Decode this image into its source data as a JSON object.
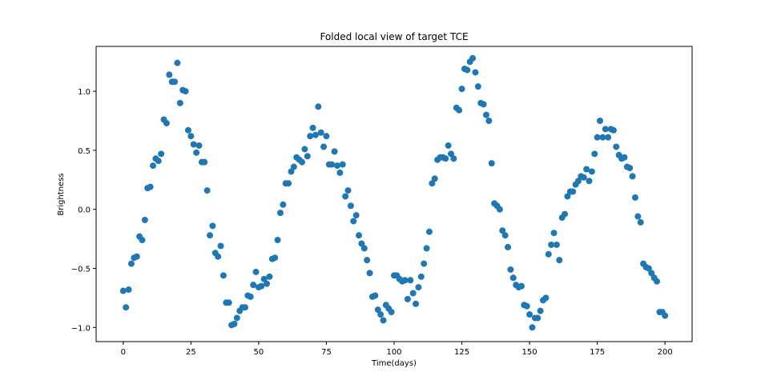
{
  "chart_data": {
    "type": "scatter",
    "title": "Folded local view of target TCE",
    "xlabel": "Time(days)",
    "ylabel": "Brightness",
    "xlim": [
      -10,
      210
    ],
    "ylim": [
      -1.12,
      1.38
    ],
    "xticks": [
      0,
      25,
      50,
      75,
      100,
      125,
      150,
      175,
      200
    ],
    "yticks": [
      -1.0,
      -0.5,
      0.0,
      0.5,
      1.0
    ],
    "ytick_labels": [
      "−1.0",
      "−0.5",
      "0.0",
      "0.5",
      "1.0"
    ],
    "grid": false,
    "marker_color": "#1f77b4",
    "x": [
      0,
      1,
      2,
      3,
      4,
      5,
      6,
      7,
      8,
      9,
      10,
      11,
      12,
      13,
      14,
      15,
      16,
      17,
      18,
      19,
      20,
      21,
      22,
      23,
      24,
      25,
      26,
      27,
      28,
      29,
      30,
      31,
      32,
      33,
      34,
      35,
      36,
      37,
      38,
      39,
      40,
      41,
      42,
      43,
      44,
      45,
      46,
      47,
      48,
      49,
      50,
      51,
      52,
      53,
      54,
      55,
      56,
      57,
      58,
      59,
      60,
      61,
      62,
      63,
      64,
      65,
      66,
      67,
      68,
      69,
      70,
      71,
      72,
      73,
      74,
      75,
      76,
      77,
      78,
      79,
      80,
      81,
      82,
      83,
      84,
      85,
      86,
      87,
      88,
      89,
      90,
      91,
      92,
      93,
      94,
      95,
      96,
      97,
      98,
      99,
      100,
      101,
      102,
      103,
      104,
      105,
      106,
      107,
      108,
      109,
      110,
      111,
      112,
      113,
      114,
      115,
      116,
      117,
      118,
      119,
      120,
      121,
      122,
      123,
      124,
      125,
      126,
      127,
      128,
      129,
      130,
      131,
      132,
      133,
      134,
      135,
      136,
      137,
      138,
      139,
      140,
      141,
      142,
      143,
      144,
      145,
      146,
      147,
      148,
      149,
      150,
      151,
      152,
      153,
      154,
      155,
      156,
      157,
      158,
      159,
      160,
      161,
      162,
      163,
      164,
      165,
      166,
      167,
      168,
      169,
      170,
      171,
      172,
      173,
      174,
      175,
      176,
      177,
      178,
      179,
      180,
      181,
      182,
      183,
      184,
      185,
      186,
      187,
      188,
      189,
      190,
      191,
      192,
      193,
      194,
      195,
      196,
      197,
      198,
      199,
      200
    ],
    "y": [
      -0.69,
      -0.83,
      -0.68,
      -0.46,
      -0.41,
      -0.4,
      -0.23,
      -0.26,
      -0.09,
      0.18,
      0.19,
      0.37,
      0.43,
      0.41,
      0.47,
      0.76,
      0.73,
      1.14,
      1.08,
      1.08,
      1.24,
      0.9,
      1.01,
      1.0,
      0.67,
      0.62,
      0.55,
      0.48,
      0.54,
      0.4,
      0.4,
      0.16,
      -0.22,
      -0.14,
      -0.37,
      -0.4,
      -0.31,
      -0.56,
      -0.79,
      -0.79,
      -0.98,
      -0.97,
      -0.92,
      -0.86,
      -0.83,
      -0.83,
      -0.73,
      -0.74,
      -0.64,
      -0.53,
      -0.66,
      -0.65,
      -0.59,
      -0.63,
      -0.57,
      -0.42,
      -0.41,
      -0.26,
      -0.03,
      0.04,
      0.22,
      0.22,
      0.32,
      0.36,
      0.44,
      0.42,
      0.4,
      0.51,
      0.45,
      0.62,
      0.69,
      0.63,
      0.87,
      0.65,
      0.53,
      0.62,
      0.38,
      0.38,
      0.49,
      0.37,
      0.31,
      0.38,
      0.11,
      0.16,
      0.03,
      -0.1,
      -0.05,
      -0.22,
      -0.29,
      -0.33,
      -0.43,
      -0.54,
      -0.74,
      -0.73,
      -0.85,
      -0.89,
      -0.94,
      -0.81,
      -0.84,
      -0.87,
      -0.56,
      -0.56,
      -0.59,
      -0.61,
      -0.6,
      -0.76,
      -0.6,
      -0.71,
      -0.8,
      -0.66,
      -0.57,
      -0.46,
      -0.33,
      -0.19,
      0.22,
      0.26,
      0.42,
      0.44,
      0.44,
      0.43,
      0.54,
      0.47,
      0.43,
      0.86,
      0.84,
      1.02,
      1.19,
      1.18,
      1.25,
      1.28,
      1.16,
      1.04,
      0.9,
      0.89,
      0.8,
      0.75,
      0.39,
      0.05,
      0.03,
      0.0,
      -0.18,
      -0.22,
      -0.32,
      -0.51,
      -0.58,
      -0.64,
      -0.66,
      -0.65,
      -0.81,
      -0.82,
      -0.89,
      -1.0,
      -0.92,
      -0.92,
      -0.86,
      -0.77,
      -0.75,
      -0.38,
      -0.3,
      -0.2,
      -0.3,
      -0.43,
      -0.07,
      -0.04,
      0.11,
      0.15,
      0.15,
      0.21,
      0.24,
      0.28,
      0.27,
      0.34,
      0.24,
      0.32,
      0.47,
      0.61,
      0.75,
      0.61,
      0.68,
      0.61,
      0.68,
      0.67,
      0.53,
      0.46,
      0.43,
      0.44,
      0.36,
      0.35,
      0.28,
      0.1,
      -0.06,
      -0.11,
      -0.46,
      -0.49,
      -0.5,
      -0.54,
      -0.58,
      -0.61,
      -0.87,
      -0.87,
      -0.9
    ]
  }
}
